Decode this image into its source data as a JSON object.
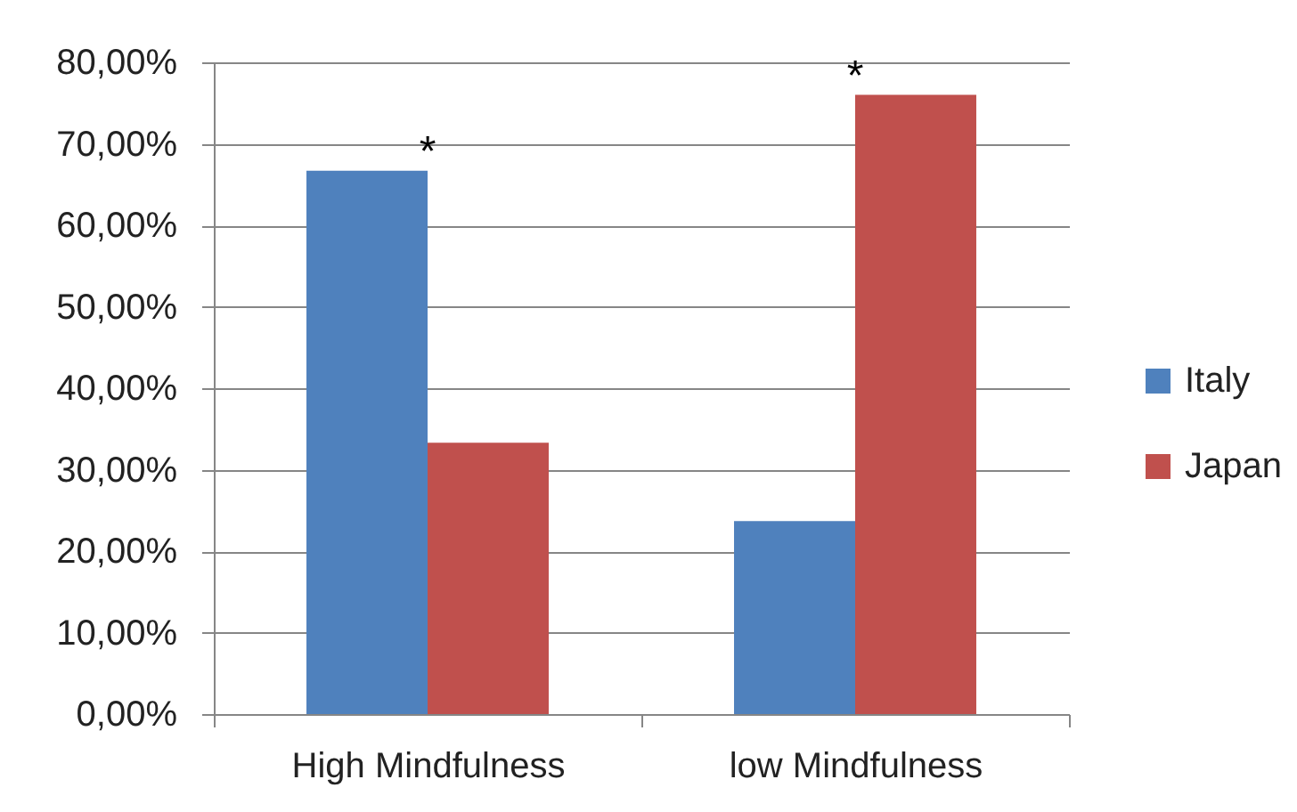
{
  "chart_data": {
    "type": "bar",
    "categories": [
      "High Mindfulness",
      "low Mindfulness"
    ],
    "series": [
      {
        "name": "Italy",
        "color": "#4f81bd",
        "values": [
          66.7,
          23.7
        ]
      },
      {
        "name": "Japan",
        "color": "#c0504d",
        "values": [
          33.3,
          76.0
        ]
      }
    ],
    "ylim": [
      0,
      80
    ],
    "yticks": [
      {
        "value": 0,
        "label": "0,00%"
      },
      {
        "value": 10,
        "label": "10,00%"
      },
      {
        "value": 20,
        "label": "20,00%"
      },
      {
        "value": 30,
        "label": "30,00%"
      },
      {
        "value": 40,
        "label": "40,00%"
      },
      {
        "value": 50,
        "label": "50,00%"
      },
      {
        "value": 60,
        "label": "60,00%"
      },
      {
        "value": 70,
        "label": "70,00%"
      },
      {
        "value": 80,
        "label": "80,00%"
      }
    ],
    "annotations": [
      {
        "text": "*",
        "x": "High Mindfulness",
        "y": 66.7
      },
      {
        "text": "*",
        "x": "low Mindfulness",
        "y": 76.0
      }
    ],
    "grid": "y",
    "legend": "right"
  }
}
